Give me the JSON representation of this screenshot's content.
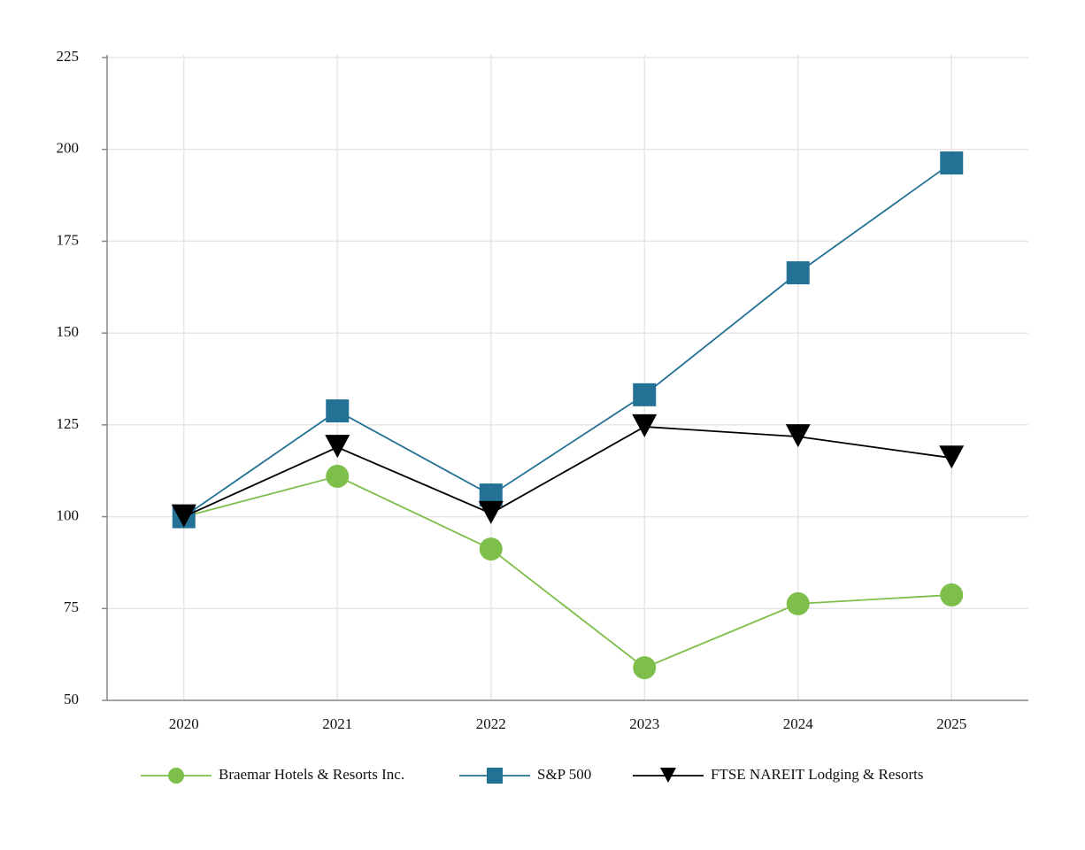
{
  "chart_data": {
    "type": "line",
    "categories": [
      "2020",
      "2021",
      "2022",
      "2023",
      "2024",
      "2025"
    ],
    "series": [
      {
        "name": "Braemar Hotels & Resorts Inc.",
        "color": "#7dbf4a",
        "marker": "circle",
        "values": [
          100,
          111,
          91.2,
          58.9,
          76.3,
          78.7
        ]
      },
      {
        "name": "S&P 500",
        "color": "#247196",
        "marker": "square",
        "values": [
          100,
          128.8,
          105.9,
          133.2,
          166.4,
          196.3
        ]
      },
      {
        "name": "FTSE NAREIT Lodging & Resorts",
        "color": "#000000",
        "marker": "triangle-down",
        "values": [
          100,
          118.9,
          100.9,
          124.5,
          121.8,
          116
        ]
      }
    ],
    "ylim": [
      50,
      225
    ],
    "yticks": [
      50,
      75,
      100,
      125,
      150,
      175,
      200,
      225
    ],
    "grid": true,
    "legend": "bottom"
  }
}
